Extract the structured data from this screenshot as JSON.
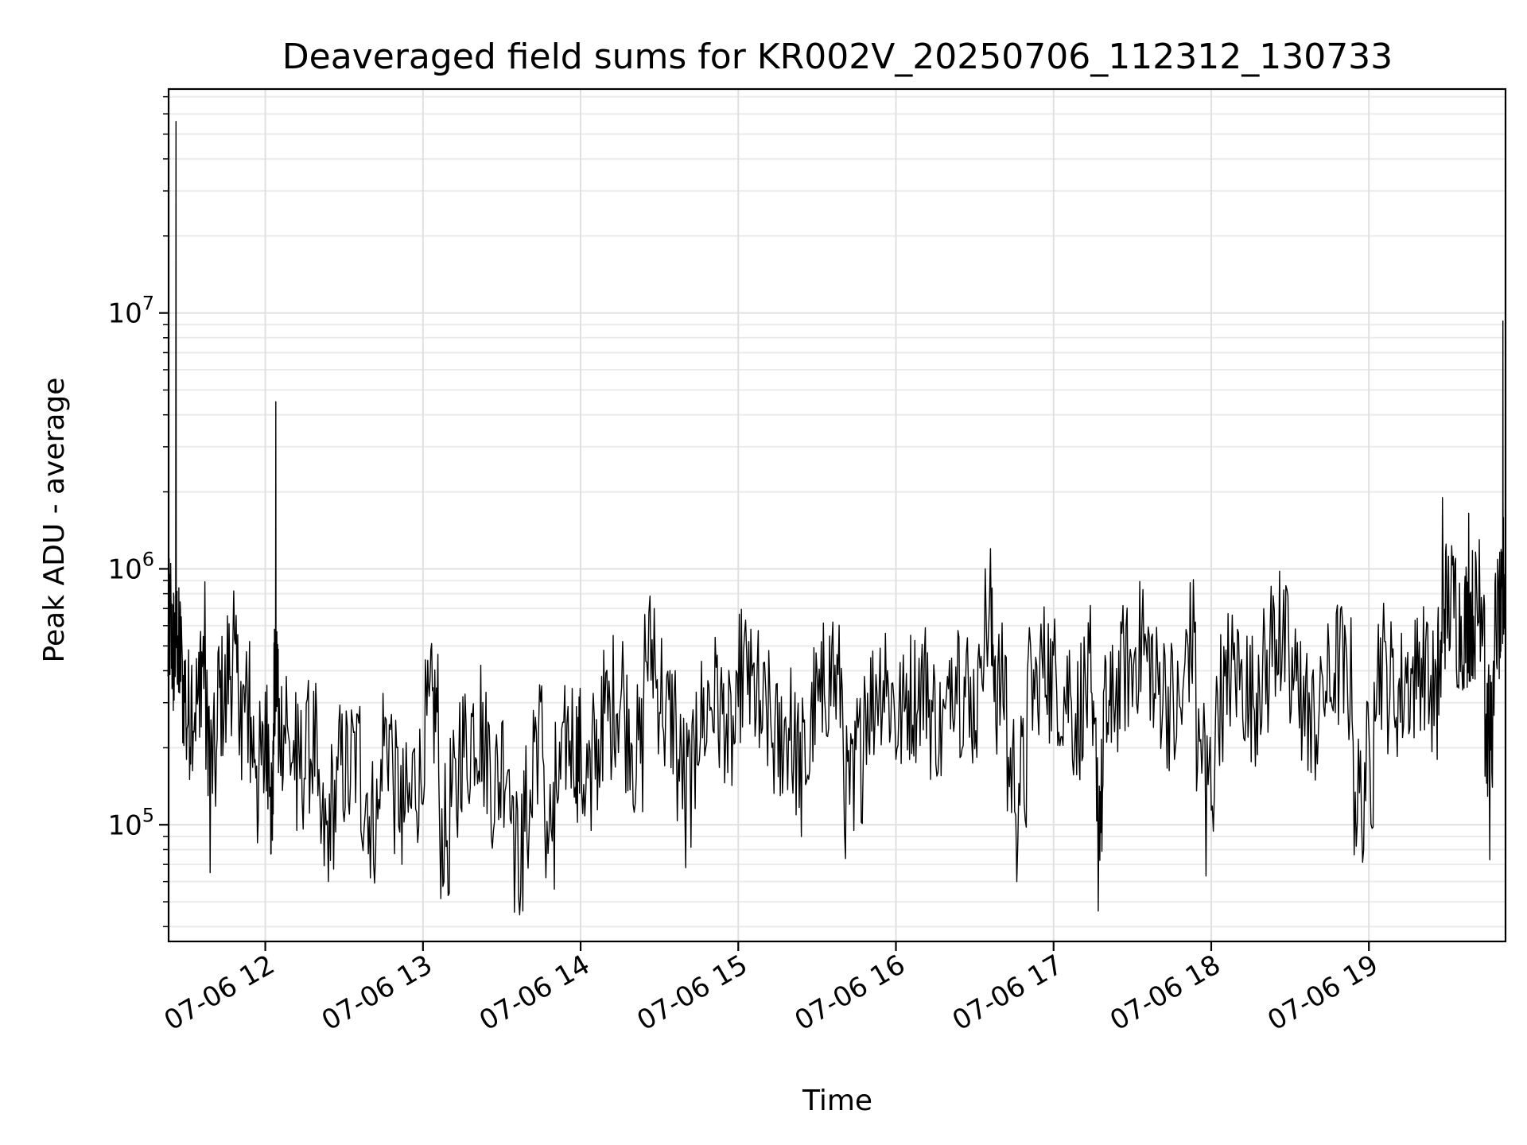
{
  "chart_data": {
    "type": "line",
    "title": "Deaveraged field sums for KR002V_20250706_112312_130733",
    "xlabel": "Time",
    "ylabel": "Peak ADU - average",
    "yscale": "log",
    "ylim": [
      35000,
      75000000
    ],
    "xlim": [
      "2025-07-06 11:23:12",
      "2025-07-06 19:52:00"
    ],
    "grid": true,
    "grid_minor": true,
    "line_color": "#000000",
    "x_ticks": [
      {
        "value": "2025-07-06 12:00",
        "label": "07-06 12"
      },
      {
        "value": "2025-07-06 13:00",
        "label": "07-06 13"
      },
      {
        "value": "2025-07-06 14:00",
        "label": "07-06 14"
      },
      {
        "value": "2025-07-06 15:00",
        "label": "07-06 15"
      },
      {
        "value": "2025-07-06 16:00",
        "label": "07-06 16"
      },
      {
        "value": "2025-07-06 17:00",
        "label": "07-06 17"
      },
      {
        "value": "2025-07-06 18:00",
        "label": "07-06 18"
      },
      {
        "value": "2025-07-06 19:00",
        "label": "07-06 19"
      }
    ],
    "y_ticks": [
      {
        "value": 100000,
        "base": "10",
        "exp": "5"
      },
      {
        "value": 1000000,
        "base": "10",
        "exp": "6"
      },
      {
        "value": 10000000,
        "base": "10",
        "exp": "7"
      }
    ],
    "series": [
      {
        "points": [
          [
            "2025-07-06 11:23",
            380000
          ],
          [
            "2025-07-06 11:24",
            1050000
          ],
          [
            "2025-07-06 11:25",
            280000
          ],
          [
            "2025-07-06 11:26",
            56000000
          ],
          [
            "2025-07-06 11:27",
            330000
          ],
          [
            "2025-07-06 11:28",
            650000
          ],
          [
            "2025-07-06 11:30",
            180000
          ],
          [
            "2025-07-06 11:32",
            420000
          ],
          [
            "2025-07-06 11:35",
            220000
          ],
          [
            "2025-07-06 11:37",
            890000
          ],
          [
            "2025-07-06 11:39",
            65000
          ],
          [
            "2025-07-06 11:42",
            470000
          ],
          [
            "2025-07-06 11:45",
            210000
          ],
          [
            "2025-07-06 11:48",
            820000
          ],
          [
            "2025-07-06 11:51",
            150000
          ],
          [
            "2025-07-06 11:54",
            520000
          ],
          [
            "2025-07-06 11:57",
            85000
          ],
          [
            "2025-07-06 12:00",
            330000
          ],
          [
            "2025-07-06 12:02",
            140000
          ],
          [
            "2025-07-06 12:03",
            110000
          ],
          [
            "2025-07-06 12:04",
            4500000
          ],
          [
            "2025-07-06 12:05",
            160000
          ],
          [
            "2025-07-06 12:08",
            380000
          ],
          [
            "2025-07-06 12:12",
            95000
          ],
          [
            "2025-07-06 12:16",
            310000
          ],
          [
            "2025-07-06 12:20",
            130000
          ],
          [
            "2025-07-06 12:24",
            60000
          ],
          [
            "2025-07-06 12:28",
            250000
          ],
          [
            "2025-07-06 12:32",
            110000
          ],
          [
            "2025-07-06 12:36",
            290000
          ],
          [
            "2025-07-06 12:40",
            62000
          ],
          [
            "2025-07-06 12:44",
            180000
          ],
          [
            "2025-07-06 12:48",
            270000
          ],
          [
            "2025-07-06 12:52",
            70000
          ],
          [
            "2025-07-06 12:56",
            190000
          ],
          [
            "2025-07-06 13:00",
            120000
          ],
          [
            "2025-07-06 13:03",
            480000
          ],
          [
            "2025-07-06 13:06",
            160000
          ],
          [
            "2025-07-06 13:10",
            54000
          ],
          [
            "2025-07-06 13:14",
            300000
          ],
          [
            "2025-07-06 13:18",
            140000
          ],
          [
            "2025-07-06 13:22",
            420000
          ],
          [
            "2025-07-06 13:26",
            90000
          ],
          [
            "2025-07-06 13:30",
            250000
          ],
          [
            "2025-07-06 13:34",
            130000
          ],
          [
            "2025-07-06 13:38",
            46000
          ],
          [
            "2025-07-06 13:42",
            280000
          ],
          [
            "2025-07-06 13:46",
            170000
          ],
          [
            "2025-07-06 13:50",
            56000
          ],
          [
            "2025-07-06 13:54",
            350000
          ],
          [
            "2025-07-06 13:58",
            140000
          ],
          [
            "2025-07-06 14:00",
            260000
          ],
          [
            "2025-07-06 14:04",
            95000
          ],
          [
            "2025-07-06 14:08",
            380000
          ],
          [
            "2025-07-06 14:12",
            190000
          ],
          [
            "2025-07-06 14:16",
            520000
          ],
          [
            "2025-07-06 14:20",
            120000
          ],
          [
            "2025-07-06 14:24",
            310000
          ],
          [
            "2025-07-06 14:28",
            700000
          ],
          [
            "2025-07-06 14:32",
            170000
          ],
          [
            "2025-07-06 14:36",
            400000
          ],
          [
            "2025-07-06 14:40",
            68000
          ],
          [
            "2025-07-06 14:44",
            330000
          ],
          [
            "2025-07-06 14:48",
            210000
          ],
          [
            "2025-07-06 14:52",
            460000
          ],
          [
            "2025-07-06 14:56",
            160000
          ],
          [
            "2025-07-06 15:00",
            290000
          ],
          [
            "2025-07-06 15:04",
            520000
          ],
          [
            "2025-07-06 15:08",
            200000
          ],
          [
            "2025-07-06 15:12",
            340000
          ],
          [
            "2025-07-06 15:16",
            130000
          ],
          [
            "2025-07-06 15:20",
            410000
          ],
          [
            "2025-07-06 15:24",
            90000
          ],
          [
            "2025-07-06 15:28",
            360000
          ],
          [
            "2025-07-06 15:32",
            230000
          ],
          [
            "2025-07-06 15:36",
            620000
          ],
          [
            "2025-07-06 15:40",
            190000
          ],
          [
            "2025-07-06 15:44",
            95000
          ],
          [
            "2025-07-06 15:48",
            380000
          ],
          [
            "2025-07-06 15:52",
            250000
          ],
          [
            "2025-07-06 15:56",
            560000
          ],
          [
            "2025-07-06 16:00",
            180000
          ],
          [
            "2025-07-06 16:04",
            390000
          ],
          [
            "2025-07-06 16:08",
            270000
          ],
          [
            "2025-07-06 16:12",
            470000
          ],
          [
            "2025-07-06 16:16",
            160000
          ],
          [
            "2025-07-06 16:20",
            340000
          ],
          [
            "2025-07-06 16:24",
            540000
          ],
          [
            "2025-07-06 16:28",
            220000
          ],
          [
            "2025-07-06 16:32",
            410000
          ],
          [
            "2025-07-06 16:36",
            1200000
          ],
          [
            "2025-07-06 16:38",
            250000
          ],
          [
            "2025-07-06 16:42",
            450000
          ],
          [
            "2025-07-06 16:46",
            60000
          ],
          [
            "2025-07-06 16:50",
            390000
          ],
          [
            "2025-07-06 16:54",
            280000
          ],
          [
            "2025-07-06 16:58",
            610000
          ],
          [
            "2025-07-06 17:02",
            230000
          ],
          [
            "2025-07-06 17:06",
            480000
          ],
          [
            "2025-07-06 17:10",
            150000
          ],
          [
            "2025-07-06 17:14",
            720000
          ],
          [
            "2025-07-06 17:17",
            46000
          ],
          [
            "2025-07-06 17:19",
            330000
          ],
          [
            "2025-07-06 17:22",
            210000
          ],
          [
            "2025-07-06 17:26",
            560000
          ],
          [
            "2025-07-06 17:30",
            290000
          ],
          [
            "2025-07-06 17:34",
            830000
          ],
          [
            "2025-07-06 17:38",
            240000
          ],
          [
            "2025-07-06 17:42",
            510000
          ],
          [
            "2025-07-06 17:46",
            180000
          ],
          [
            "2025-07-06 17:50",
            430000
          ],
          [
            "2025-07-06 17:54",
            620000
          ],
          [
            "2025-07-06 17:58",
            63000
          ],
          [
            "2025-07-06 18:02",
            380000
          ],
          [
            "2025-07-06 18:06",
            270000
          ],
          [
            "2025-07-06 18:10",
            580000
          ],
          [
            "2025-07-06 18:14",
            220000
          ],
          [
            "2025-07-06 18:18",
            460000
          ],
          [
            "2025-07-06 18:22",
            330000
          ],
          [
            "2025-07-06 18:26",
            980000
          ],
          [
            "2025-07-06 18:30",
            250000
          ],
          [
            "2025-07-06 18:34",
            520000
          ],
          [
            "2025-07-06 18:38",
            160000
          ],
          [
            "2025-07-06 18:42",
            400000
          ],
          [
            "2025-07-06 18:46",
            290000
          ],
          [
            "2025-07-06 18:50",
            610000
          ],
          [
            "2025-07-06 18:54",
            210000
          ],
          [
            "2025-07-06 18:58",
            80000
          ],
          [
            "2025-07-06 19:02",
            360000
          ],
          [
            "2025-07-06 19:06",
            520000
          ],
          [
            "2025-07-06 19:10",
            240000
          ],
          [
            "2025-07-06 19:14",
            450000
          ],
          [
            "2025-07-06 19:18",
            310000
          ],
          [
            "2025-07-06 19:22",
            620000
          ],
          [
            "2025-07-06 19:26",
            180000
          ],
          [
            "2025-07-06 19:28",
            1900000
          ],
          [
            "2025-07-06 19:30",
            600000
          ],
          [
            "2025-07-06 19:33",
            1100000
          ],
          [
            "2025-07-06 19:36",
            420000
          ],
          [
            "2025-07-06 19:38",
            1650000
          ],
          [
            "2025-07-06 19:40",
            500000
          ],
          [
            "2025-07-06 19:42",
            1300000
          ],
          [
            "2025-07-06 19:44",
            720000
          ],
          [
            "2025-07-06 19:46",
            73000
          ],
          [
            "2025-07-06 19:48",
            880000
          ],
          [
            "2025-07-06 19:50",
            450000
          ],
          [
            "2025-07-06 19:51",
            9300000
          ],
          [
            "2025-07-06 19:52",
            1500000
          ]
        ]
      }
    ]
  }
}
